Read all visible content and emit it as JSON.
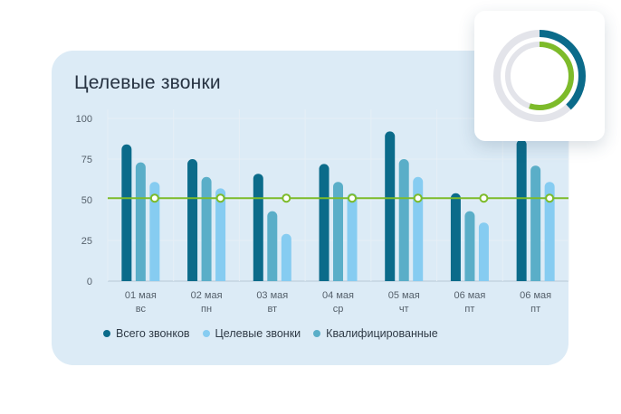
{
  "chart_data": {
    "type": "bar",
    "title": "Целевые звонки",
    "categories": [
      {
        "date": "01 мая",
        "day": "вс"
      },
      {
        "date": "02 мая",
        "day": "пн"
      },
      {
        "date": "03 мая",
        "day": "вт"
      },
      {
        "date": "04 мая",
        "day": "ср"
      },
      {
        "date": "05 мая",
        "day": "чт"
      },
      {
        "date": "06 мая",
        "day": "пт"
      },
      {
        "date": "06 мая",
        "day": "пт"
      }
    ],
    "series": [
      {
        "name": "Всего звонков",
        "color": "#0b6b8a",
        "values": [
          84,
          75,
          66,
          72,
          92,
          54,
          87
        ]
      },
      {
        "name": "Квалифицированные",
        "color": "#5aaec8",
        "values": [
          73,
          64,
          43,
          61,
          75,
          43,
          71
        ]
      },
      {
        "name": "Целевые звонки",
        "color": "#86ccf1",
        "values": [
          61,
          57,
          29,
          54,
          64,
          36,
          61
        ]
      }
    ],
    "legend_order": [
      "Всего звонков",
      "Целевые звонки",
      "Квалифицированные"
    ],
    "reference_line": {
      "value": 51,
      "color": "#7dbb2a"
    },
    "ylim": [
      0,
      100
    ],
    "yticks": [
      0,
      25,
      50,
      75,
      100
    ],
    "grid": true,
    "legend_position": "bottom"
  },
  "donut": {
    "outer_value": 0.38,
    "inner_value": 0.55,
    "outer_color": "#0b6b8a",
    "inner_color": "#7dbb2a",
    "track_color": "#e3e4ea"
  }
}
